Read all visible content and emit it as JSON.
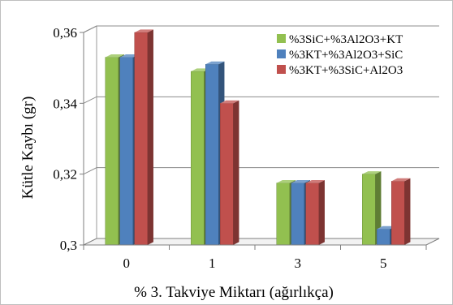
{
  "chart_data": {
    "type": "bar",
    "categories": [
      "0",
      "1",
      "3",
      "5"
    ],
    "series": [
      {
        "name": "%3SiC+%3Al2O3+KT",
        "values": [
          0.353,
          0.349,
          0.3175,
          0.32
        ],
        "color": "#92c050"
      },
      {
        "name": "%3KT+%3Al2O3+SiC",
        "values": [
          0.353,
          0.351,
          0.3175,
          0.3045
        ],
        "color": "#4f81bd"
      },
      {
        "name": "%3KT+%3SiC+Al2O3",
        "values": [
          0.36,
          0.34,
          0.3175,
          0.318
        ],
        "color": "#c0504d"
      }
    ],
    "xlabel": "% 3. Takviye Miktarı (ağırlıkça)",
    "ylabel": "Kütle Kaybı (gr)",
    "ylim": [
      0.3,
      0.36
    ],
    "yticks": [
      "0,3",
      "0,32",
      "0,34",
      "0,36"
    ],
    "ytick_values": [
      0.3,
      0.32,
      0.34,
      0.36
    ],
    "grid": true,
    "legend_position": "top-right",
    "style": "3d-clustered-bar"
  }
}
